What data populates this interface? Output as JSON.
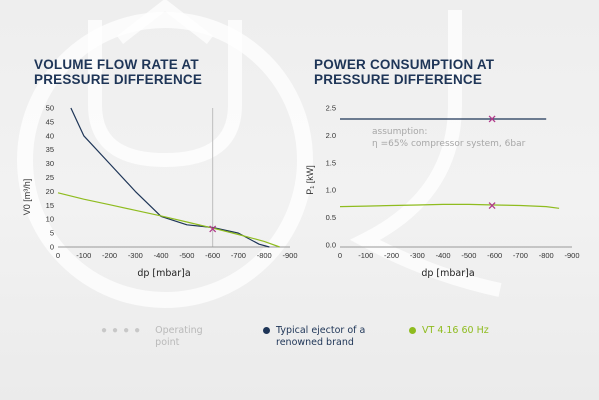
{
  "left_chart": {
    "title_line1": "VOLUME FLOW RATE AT",
    "title_line2": "PRESSURE DIFFERENCE"
  },
  "right_chart": {
    "title_line1": "POWER CONSUMPTION AT",
    "title_line2": "PRESSURE DIFFERENCE"
  },
  "legend": {
    "operating_label": "Operating\npoint",
    "ejector_label": "Typical ejector of a\nrenowned brand",
    "vt_label": "VT 4.16 60 Hz"
  },
  "colors": {
    "ejector": "#1e3557",
    "vt": "#8fbc1f",
    "marker": "#b03a8a",
    "operating_line": "#bdbdbd",
    "title": "#1e3557"
  },
  "chart_data": [
    {
      "type": "line",
      "title": "VOLUME FLOW RATE AT PRESSURE DIFFERENCE",
      "xlabel": "dp [mbar]a",
      "ylabel": "V0 [m³/h]",
      "xlim": [
        0,
        -900
      ],
      "ylim": [
        0,
        50
      ],
      "x_ticks": [
        0,
        -100,
        -200,
        -300,
        -400,
        -500,
        -600,
        -700,
        -800,
        -900
      ],
      "x_tick_labels": [
        "0",
        "-100",
        "-200",
        "-300",
        "-400",
        "-500",
        "-600",
        "-700",
        "-800",
        "-900"
      ],
      "y_ticks": [
        0,
        5,
        10,
        15,
        20,
        25,
        30,
        35,
        40,
        45,
        50
      ],
      "y_tick_labels": [
        "0",
        "5",
        "10",
        "15",
        "20",
        "25",
        "30",
        "35",
        "40",
        "45",
        "50"
      ],
      "grid": false,
      "operating_point_x": -600,
      "series": [
        {
          "name": "Typical ejector of a renowned brand",
          "color": "#1e3557",
          "x": [
            -50,
            -100,
            -200,
            -300,
            -400,
            -500,
            -600,
            -700,
            -780,
            -820
          ],
          "y": [
            50,
            40,
            30,
            20,
            11,
            8,
            7,
            5,
            1,
            0
          ]
        },
        {
          "name": "VT 4.16 60 Hz",
          "color": "#8fbc1f",
          "x": [
            0,
            -100,
            -200,
            -300,
            -400,
            -500,
            -600,
            -700,
            -800,
            -860
          ],
          "y": [
            19.5,
            17.2,
            15.2,
            13.2,
            11.2,
            9.0,
            6.8,
            4.5,
            2.0,
            0
          ]
        }
      ],
      "markers": [
        {
          "x": -600,
          "y": 6.5,
          "symbol": "x"
        }
      ]
    },
    {
      "type": "line",
      "title": "POWER CONSUMPTION AT PRESSURE DIFFERENCE",
      "xlabel": "dp [mbar]a",
      "ylabel": "P₁ [kW]",
      "xlim": [
        0,
        -900
      ],
      "ylim": [
        0,
        2.5
      ],
      "x_ticks": [
        0,
        -100,
        -200,
        -300,
        -400,
        -500,
        -600,
        -700,
        -800,
        -900
      ],
      "x_tick_labels": [
        "0",
        "-100",
        "-200",
        "-300",
        "-400",
        "-500",
        "-600",
        "-700",
        "-800",
        "-900"
      ],
      "y_ticks": [
        0,
        0.5,
        1.0,
        1.5,
        2.0,
        2.5
      ],
      "y_tick_labels": [
        "0.0",
        "0.5",
        "1.0",
        "1.5",
        "2.0",
        "2.5"
      ],
      "grid": false,
      "annotation_line1": "assumption:",
      "annotation_line2": "η =65% compressor system, 6bar",
      "series": [
        {
          "name": "Typical ejector of a renowned brand",
          "color": "#1e3557",
          "x": [
            0,
            -800
          ],
          "y": [
            2.3,
            2.3
          ]
        },
        {
          "name": "VT 4.16 60 Hz",
          "color": "#8fbc1f",
          "x": [
            0,
            -100,
            -200,
            -300,
            -400,
            -500,
            -600,
            -700,
            -800,
            -850
          ],
          "y": [
            0.7,
            0.71,
            0.72,
            0.73,
            0.74,
            0.74,
            0.73,
            0.72,
            0.7,
            0.67
          ]
        }
      ],
      "markers": [
        {
          "x": -590,
          "y": 2.3,
          "symbol": "x"
        },
        {
          "x": -590,
          "y": 0.72,
          "symbol": "x"
        }
      ]
    }
  ]
}
